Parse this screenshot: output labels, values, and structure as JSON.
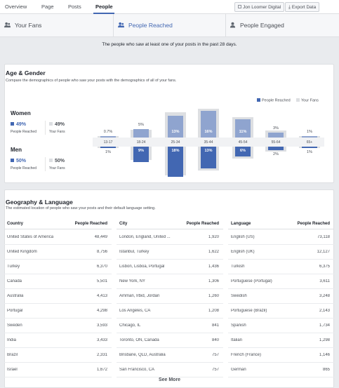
{
  "nav": {
    "tabs": [
      "Overview",
      "Page",
      "Posts",
      "People"
    ],
    "active": "People",
    "page_button": "Jon Loomer Digital",
    "export_button": "Export Data"
  },
  "metric_tabs": [
    {
      "label": "Your Fans",
      "active": false
    },
    {
      "label": "People Reached",
      "active": true
    },
    {
      "label": "People Engaged",
      "active": false
    }
  ],
  "subtitle": "The people who saw at least one of your posts in the past 28 days.",
  "age_gender": {
    "title": "Age & Gender",
    "description": "Compare the demographics of people who saw your posts with the demographics of all of your fans.",
    "legend": [
      "People Reached",
      "Your Fans"
    ],
    "women": {
      "label": "Women",
      "reached_pct": "49%",
      "fans_pct": "49%",
      "reached_label": "People Reached",
      "fans_label": "Your Fans"
    },
    "men": {
      "label": "Men",
      "reached_pct": "50%",
      "fans_pct": "50%",
      "reached_label": "People Reached",
      "fans_label": "Your Fans"
    }
  },
  "chart_data": {
    "type": "bar",
    "categories": [
      "13-17",
      "18-24",
      "25-34",
      "35-44",
      "45-54",
      "55-64",
      "65+"
    ],
    "series": [
      {
        "name": "Women (People Reached)",
        "values": [
          0.7,
          5,
          13,
          16,
          11,
          3,
          1
        ],
        "labels": [
          "0.7%",
          "5%",
          "13%",
          "16%",
          "11%",
          "3%",
          "1%"
        ]
      },
      {
        "name": "Men (People Reached)",
        "values": [
          1,
          9,
          18,
          13,
          6,
          2,
          1
        ],
        "labels": [
          "1%",
          "9%",
          "18%",
          "13%",
          "6%",
          "2%",
          "1%"
        ]
      }
    ],
    "fans_women": [
      0.7,
      4.5,
      15,
      17,
      12,
      4,
      1
    ],
    "fans_men": [
      1,
      8,
      17,
      14,
      7,
      3,
      1
    ],
    "legend_position": "top-right",
    "colors": {
      "reached": "#4267b2",
      "reached_light": "#8fa4cf",
      "fans": "#dddfe2"
    }
  },
  "geo": {
    "title": "Geography & Language",
    "description": "The estimated location of people who saw your posts and their default language setting.",
    "country": {
      "headers": [
        "Country",
        "People Reached"
      ],
      "rows": [
        [
          "United States of America",
          "48,449"
        ],
        [
          "United Kingdom",
          "8,756"
        ],
        [
          "Turkey",
          "6,370"
        ],
        [
          "Canada",
          "5,501"
        ],
        [
          "Australia",
          "4,413"
        ],
        [
          "Portugal",
          "4,298"
        ],
        [
          "Sweden",
          "3,593"
        ],
        [
          "India",
          "3,433"
        ],
        [
          "Brazil",
          "2,331"
        ],
        [
          "Israel",
          "1,672"
        ]
      ]
    },
    "city": {
      "headers": [
        "City",
        "People Reached"
      ],
      "rows": [
        [
          "London, England, United ...",
          "1,920"
        ],
        [
          "Istanbul, Turkey",
          "1,622"
        ],
        [
          "Lisbon, Lisboa, Portugal",
          "1,436"
        ],
        [
          "New York, NY",
          "1,306"
        ],
        [
          "Amman, Irbid, Jordan",
          "1,260"
        ],
        [
          "Los Angeles, CA",
          "1,208"
        ],
        [
          "Chicago, IL",
          "841"
        ],
        [
          "Toronto, ON, Canada",
          "840"
        ],
        [
          "Brisbane, QLD, Australia",
          "757"
        ],
        [
          "San Francisco, CA",
          "757"
        ]
      ]
    },
    "language": {
      "headers": [
        "Language",
        "People Reached"
      ],
      "rows": [
        [
          "English (US)",
          "73,118"
        ],
        [
          "English (UK)",
          "12,127"
        ],
        [
          "Turkish",
          "6,375"
        ],
        [
          "Portuguese (Portugal)",
          "3,611"
        ],
        [
          "Swedish",
          "3,248"
        ],
        [
          "Portuguese (Brazil)",
          "2,143"
        ],
        [
          "Spanish",
          "1,734"
        ],
        [
          "Italian",
          "1,298"
        ],
        [
          "French (France)",
          "1,146"
        ],
        [
          "German",
          "865"
        ]
      ]
    },
    "see_more": "See More"
  }
}
